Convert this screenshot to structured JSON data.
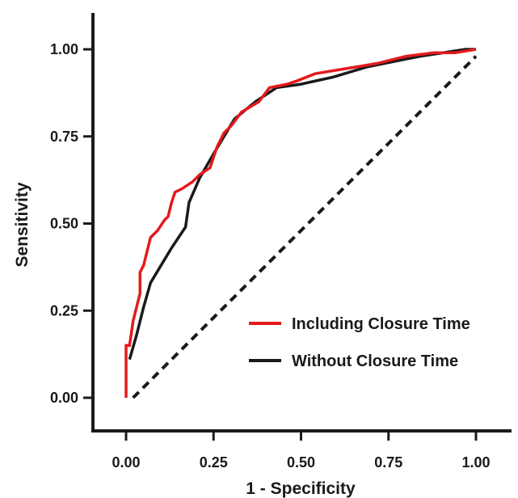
{
  "chart_data": {
    "type": "line",
    "xlabel": "1 - Specificity",
    "ylabel": "Sensitivity",
    "xlim": [
      0,
      1
    ],
    "ylim": [
      0,
      1
    ],
    "x_ticks": [
      "0.00",
      "0.25",
      "0.50",
      "0.75",
      "1.00"
    ],
    "y_ticks": [
      "0.00",
      "0.25",
      "0.50",
      "0.75",
      "1.00"
    ],
    "grid": false,
    "legend_position": "bottom-right",
    "series": [
      {
        "name": "Including Closure Time",
        "color": "#e31a1c",
        "style": "solid",
        "points": [
          [
            0.0,
            0.0
          ],
          [
            0.0,
            0.15
          ],
          [
            0.01,
            0.15
          ],
          [
            0.02,
            0.22
          ],
          [
            0.03,
            0.26
          ],
          [
            0.04,
            0.3
          ],
          [
            0.04,
            0.36
          ],
          [
            0.05,
            0.38
          ],
          [
            0.06,
            0.42
          ],
          [
            0.07,
            0.46
          ],
          [
            0.09,
            0.48
          ],
          [
            0.11,
            0.51
          ],
          [
            0.12,
            0.52
          ],
          [
            0.13,
            0.56
          ],
          [
            0.14,
            0.59
          ],
          [
            0.16,
            0.6
          ],
          [
            0.19,
            0.62
          ],
          [
            0.21,
            0.64
          ],
          [
            0.24,
            0.66
          ],
          [
            0.26,
            0.72
          ],
          [
            0.28,
            0.76
          ],
          [
            0.3,
            0.78
          ],
          [
            0.33,
            0.82
          ],
          [
            0.38,
            0.85
          ],
          [
            0.41,
            0.89
          ],
          [
            0.46,
            0.9
          ],
          [
            0.49,
            0.91
          ],
          [
            0.54,
            0.93
          ],
          [
            0.6,
            0.94
          ],
          [
            0.66,
            0.95
          ],
          [
            0.72,
            0.96
          ],
          [
            0.8,
            0.98
          ],
          [
            0.88,
            0.99
          ],
          [
            0.94,
            0.99
          ],
          [
            1.0,
            1.0
          ]
        ]
      },
      {
        "name": "Without Closure Time",
        "color": "#1a1a1a",
        "style": "solid",
        "points": [
          [
            0.01,
            0.11
          ],
          [
            0.03,
            0.18
          ],
          [
            0.05,
            0.26
          ],
          [
            0.07,
            0.33
          ],
          [
            0.1,
            0.38
          ],
          [
            0.13,
            0.43
          ],
          [
            0.17,
            0.49
          ],
          [
            0.18,
            0.56
          ],
          [
            0.21,
            0.63
          ],
          [
            0.25,
            0.7
          ],
          [
            0.31,
            0.8
          ],
          [
            0.37,
            0.85
          ],
          [
            0.43,
            0.89
          ],
          [
            0.5,
            0.9
          ],
          [
            0.59,
            0.92
          ],
          [
            0.69,
            0.95
          ],
          [
            0.84,
            0.98
          ],
          [
            0.97,
            1.0
          ],
          [
            1.0,
            1.0
          ]
        ]
      },
      {
        "style": "dashed",
        "color": "#1a1a1a",
        "points": [
          [
            0.02,
            0.0
          ],
          [
            1.0,
            0.98
          ]
        ]
      }
    ]
  }
}
